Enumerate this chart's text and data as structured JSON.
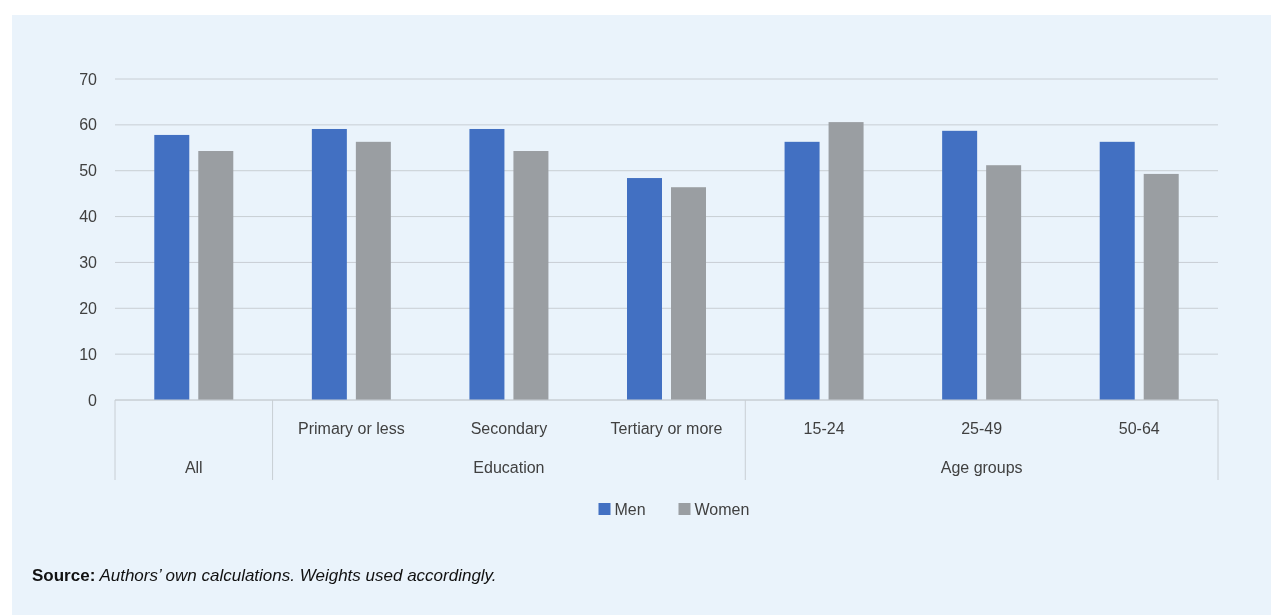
{
  "chart_data": {
    "type": "bar",
    "categories": [
      null,
      "Primary or less",
      "Secondary",
      "Tertiary or more",
      "15-24",
      "25-49",
      "50-64"
    ],
    "series": [
      {
        "name": "Men",
        "color": "#4270c2",
        "values": [
          57.8,
          59.1,
          59.1,
          48.4,
          56.3,
          58.7,
          56.3
        ]
      },
      {
        "name": "Women",
        "color": "#9a9ea2",
        "values": [
          54.3,
          56.3,
          54.3,
          46.4,
          60.6,
          51.2,
          49.3
        ]
      }
    ],
    "ylim": [
      0,
      70
    ],
    "yticks": [
      0,
      10,
      20,
      30,
      40,
      50,
      60,
      70
    ],
    "grid": "y",
    "legend": "bottom",
    "annotations": [
      "All",
      "Education",
      "Age groups",
      "Source: Authors’ own calculations. Weights used accordingly."
    ]
  }
}
